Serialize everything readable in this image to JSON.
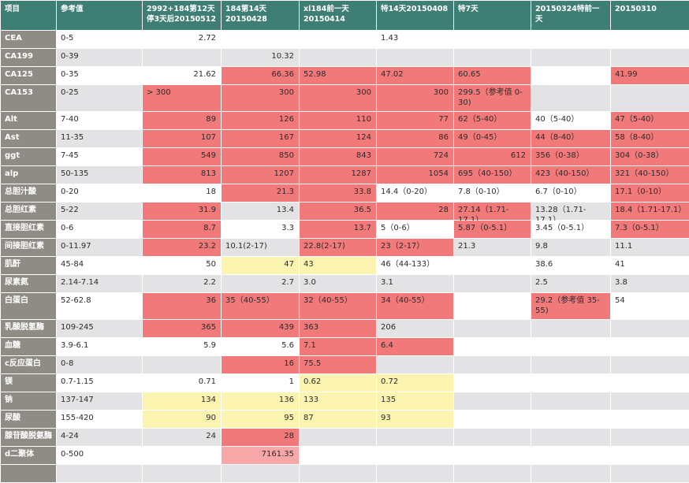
{
  "table": {
    "headers": [
      "项目",
      "参考值",
      "2992+184第12天 停3天后20150512",
      "184第14天 20150428",
      "xl184前一天 20150414",
      "特14天20150408",
      "特7天",
      "20150324特前一天",
      "20150310"
    ],
    "rows": [
      {
        "label": "CEA",
        "ref": "0-5",
        "cells": [
          {
            "v": "2.72",
            "r": true
          },
          {
            "v": ""
          },
          {
            "v": ""
          },
          {
            "v": "1.43"
          },
          {
            "v": ""
          },
          {
            "v": ""
          },
          {
            "v": ""
          }
        ]
      },
      {
        "label": "CA199",
        "ref": "0-39",
        "cells": [
          {
            "v": ""
          },
          {
            "v": "10.32",
            "r": true
          },
          {
            "v": ""
          },
          {
            "v": ""
          },
          {
            "v": ""
          },
          {
            "v": ""
          },
          {
            "v": ""
          }
        ]
      },
      {
        "label": "CA125",
        "ref": "0-35",
        "cells": [
          {
            "v": "21.62",
            "r": true
          },
          {
            "v": "66.36",
            "r": true,
            "c": "red"
          },
          {
            "v": "52.98",
            "c": "red"
          },
          {
            "v": "47.02",
            "c": "red"
          },
          {
            "v": "60.65",
            "c": "red"
          },
          {
            "v": ""
          },
          {
            "v": "41.99",
            "c": "red"
          }
        ]
      },
      {
        "label": "CA153",
        "ref": "0-25",
        "cells": [
          {
            "v": "> 300",
            "c": "red"
          },
          {
            "v": "300",
            "r": true,
            "c": "red"
          },
          {
            "v": "300",
            "r": true,
            "c": "red"
          },
          {
            "v": "300",
            "r": true,
            "c": "red"
          },
          {
            "v": "299.5（参考值 0-30)",
            "c": "red"
          },
          {
            "v": ""
          },
          {
            "v": ""
          }
        ]
      },
      {
        "label": "Alt",
        "ref": "7-40",
        "cells": [
          {
            "v": "89",
            "r": true,
            "c": "red"
          },
          {
            "v": "126",
            "r": true,
            "c": "red"
          },
          {
            "v": "110",
            "r": true,
            "c": "red"
          },
          {
            "v": "77",
            "r": true,
            "c": "red"
          },
          {
            "v": "62（5-40）",
            "c": "red"
          },
          {
            "v": "40（5-40）"
          },
          {
            "v": "47（5-40）",
            "c": "red"
          }
        ]
      },
      {
        "label": "Ast",
        "ref": "11-35",
        "cells": [
          {
            "v": "107",
            "r": true,
            "c": "red"
          },
          {
            "v": "167",
            "r": true,
            "c": "red"
          },
          {
            "v": "124",
            "r": true,
            "c": "red"
          },
          {
            "v": "86",
            "r": true,
            "c": "red"
          },
          {
            "v": "49（0-45）",
            "c": "red"
          },
          {
            "v": "44（8-40）",
            "c": "red"
          },
          {
            "v": "58（8-40）",
            "c": "red"
          }
        ]
      },
      {
        "label": "ggt",
        "ref": "7-45",
        "cells": [
          {
            "v": "549",
            "r": true,
            "c": "red"
          },
          {
            "v": "850",
            "r": true,
            "c": "red"
          },
          {
            "v": "843",
            "r": true,
            "c": "red"
          },
          {
            "v": "724",
            "r": true,
            "c": "red"
          },
          {
            "v": "612",
            "r": true,
            "c": "red"
          },
          {
            "v": "356（0-38）",
            "c": "red"
          },
          {
            "v": "304（0-38）",
            "c": "red"
          }
        ]
      },
      {
        "label": "alp",
        "ref": "50-135",
        "cells": [
          {
            "v": "813",
            "r": true,
            "c": "red"
          },
          {
            "v": "1207",
            "r": true,
            "c": "red"
          },
          {
            "v": "1287",
            "r": true,
            "c": "red"
          },
          {
            "v": "1054",
            "r": true,
            "c": "red"
          },
          {
            "v": "695（40-150）",
            "c": "red"
          },
          {
            "v": "423（40-150）",
            "c": "red"
          },
          {
            "v": "321（40-150）",
            "c": "red"
          }
        ]
      },
      {
        "label": "总胆汁酸",
        "ref": "0-20",
        "cells": [
          {
            "v": "18",
            "r": true
          },
          {
            "v": "21.3",
            "r": true,
            "c": "red"
          },
          {
            "v": "33.8",
            "r": true,
            "c": "red"
          },
          {
            "v": "14.4（0-20）"
          },
          {
            "v": "7.8（0-10）"
          },
          {
            "v": "6.7（0-10）"
          },
          {
            "v": "17.1（0-10）",
            "c": "red"
          }
        ]
      },
      {
        "label": "总胆红素",
        "ref": "5-22",
        "cells": [
          {
            "v": "31.9",
            "r": true,
            "c": "red"
          },
          {
            "v": "13.4",
            "r": true
          },
          {
            "v": "36.5",
            "r": true,
            "c": "red"
          },
          {
            "v": "28",
            "r": true,
            "c": "red"
          },
          {
            "v": "27.14（1.71-17.1）",
            "c": "red"
          },
          {
            "v": "13.28（1.71-17.1）"
          },
          {
            "v": "18.4（1.71-17.1）",
            "c": "red"
          }
        ]
      },
      {
        "label": "直接胆红素",
        "ref": "0-6",
        "cells": [
          {
            "v": "8.7",
            "r": true,
            "c": "red"
          },
          {
            "v": "3.3",
            "r": true
          },
          {
            "v": "13.7",
            "r": true,
            "c": "red"
          },
          {
            "v": "5（0-6）"
          },
          {
            "v": "5.87（0-5.1）",
            "c": "red"
          },
          {
            "v": "3.45（0-5.1）"
          },
          {
            "v": "7.3（0-5.1）",
            "c": "red"
          }
        ]
      },
      {
        "label": "间接胆红素",
        "ref": "0-11.97",
        "cells": [
          {
            "v": "23.2",
            "r": true,
            "c": "red"
          },
          {
            "v": "10.1(2-17)"
          },
          {
            "v": "22.8(2-17)",
            "c": "red"
          },
          {
            "v": "23（2-17）",
            "c": "red"
          },
          {
            "v": "21.3"
          },
          {
            "v": "9.8"
          },
          {
            "v": "11.1"
          }
        ]
      },
      {
        "label": "肌酐",
        "ref": "45-84",
        "cells": [
          {
            "v": "50",
            "r": true
          },
          {
            "v": "47",
            "r": true,
            "c": "yel"
          },
          {
            "v": "43",
            "c": "yel"
          },
          {
            "v": "46（44-133）"
          },
          {
            "v": ""
          },
          {
            "v": "38.6"
          },
          {
            "v": "41"
          }
        ]
      },
      {
        "label": "尿素氮",
        "ref": "2.14-7.14",
        "cells": [
          {
            "v": "2.2",
            "r": true
          },
          {
            "v": "2.7",
            "r": true
          },
          {
            "v": "3.0"
          },
          {
            "v": "3.1"
          },
          {
            "v": ""
          },
          {
            "v": "2.5"
          },
          {
            "v": "3.8"
          }
        ]
      },
      {
        "label": "白蛋白",
        "ref": "52-62.8",
        "cells": [
          {
            "v": "36",
            "r": true,
            "c": "red"
          },
          {
            "v": "35（40-55）",
            "c": "red"
          },
          {
            "v": "32（40-55）",
            "c": "red"
          },
          {
            "v": "34（40-55）",
            "c": "red"
          },
          {
            "v": ""
          },
          {
            "v": "29.2（参考值 35-55)",
            "c": "red"
          },
          {
            "v": "54"
          }
        ]
      },
      {
        "label": "乳酸脱氢酶",
        "ref": "109-245",
        "cells": [
          {
            "v": "365",
            "r": true,
            "c": "red"
          },
          {
            "v": "439",
            "r": true,
            "c": "red"
          },
          {
            "v": "363",
            "c": "red"
          },
          {
            "v": "206"
          },
          {
            "v": ""
          },
          {
            "v": ""
          },
          {
            "v": ""
          }
        ]
      },
      {
        "label": "血糖",
        "ref": "3.9-6.1",
        "cells": [
          {
            "v": "5.9",
            "r": true
          },
          {
            "v": "5.6",
            "r": true
          },
          {
            "v": "7.1",
            "c": "red"
          },
          {
            "v": "6.4",
            "c": "red"
          },
          {
            "v": ""
          },
          {
            "v": ""
          },
          {
            "v": ""
          }
        ]
      },
      {
        "label": "c反应蛋白",
        "ref": "0-8",
        "cells": [
          {
            "v": ""
          },
          {
            "v": "16",
            "r": true,
            "c": "red"
          },
          {
            "v": "75.5",
            "c": "red"
          },
          {
            "v": ""
          },
          {
            "v": ""
          },
          {
            "v": ""
          },
          {
            "v": ""
          }
        ]
      },
      {
        "label": "镁",
        "ref": "0.7-1.15",
        "cells": [
          {
            "v": "0.71",
            "r": true
          },
          {
            "v": "1",
            "r": true
          },
          {
            "v": "0.62",
            "c": "yel"
          },
          {
            "v": "0.72",
            "c": "yel"
          },
          {
            "v": ""
          },
          {
            "v": ""
          },
          {
            "v": ""
          }
        ]
      },
      {
        "label": "钠",
        "ref": "137-147",
        "cells": [
          {
            "v": "134",
            "r": true,
            "c": "yel"
          },
          {
            "v": "136",
            "r": true,
            "c": "yel"
          },
          {
            "v": "133",
            "c": "yel"
          },
          {
            "v": "135",
            "c": "yel"
          },
          {
            "v": ""
          },
          {
            "v": ""
          },
          {
            "v": ""
          }
        ]
      },
      {
        "label": "尿酸",
        "ref": "155-420",
        "cells": [
          {
            "v": "90",
            "r": true,
            "c": "yel"
          },
          {
            "v": "95",
            "r": true,
            "c": "yel"
          },
          {
            "v": "87",
            "c": "yel"
          },
          {
            "v": "93",
            "c": "yel"
          },
          {
            "v": ""
          },
          {
            "v": ""
          },
          {
            "v": ""
          }
        ]
      },
      {
        "label": "腺苷酸脱氨酶",
        "ref": "4-24",
        "cells": [
          {
            "v": "24",
            "r": true
          },
          {
            "v": "28",
            "r": true,
            "c": "red"
          },
          {
            "v": ""
          },
          {
            "v": ""
          },
          {
            "v": ""
          },
          {
            "v": ""
          },
          {
            "v": ""
          }
        ]
      },
      {
        "label": "d二聚体",
        "ref": "0-500",
        "cells": [
          {
            "v": ""
          },
          {
            "v": "7161.35",
            "r": true,
            "c": "pink"
          },
          {
            "v": ""
          },
          {
            "v": ""
          },
          {
            "v": ""
          },
          {
            "v": ""
          },
          {
            "v": ""
          }
        ]
      },
      {
        "label": "",
        "ref": "",
        "cells": [
          {
            "v": ""
          },
          {
            "v": ""
          },
          {
            "v": ""
          },
          {
            "v": ""
          },
          {
            "v": ""
          },
          {
            "v": ""
          },
          {
            "v": ""
          }
        ]
      }
    ]
  }
}
